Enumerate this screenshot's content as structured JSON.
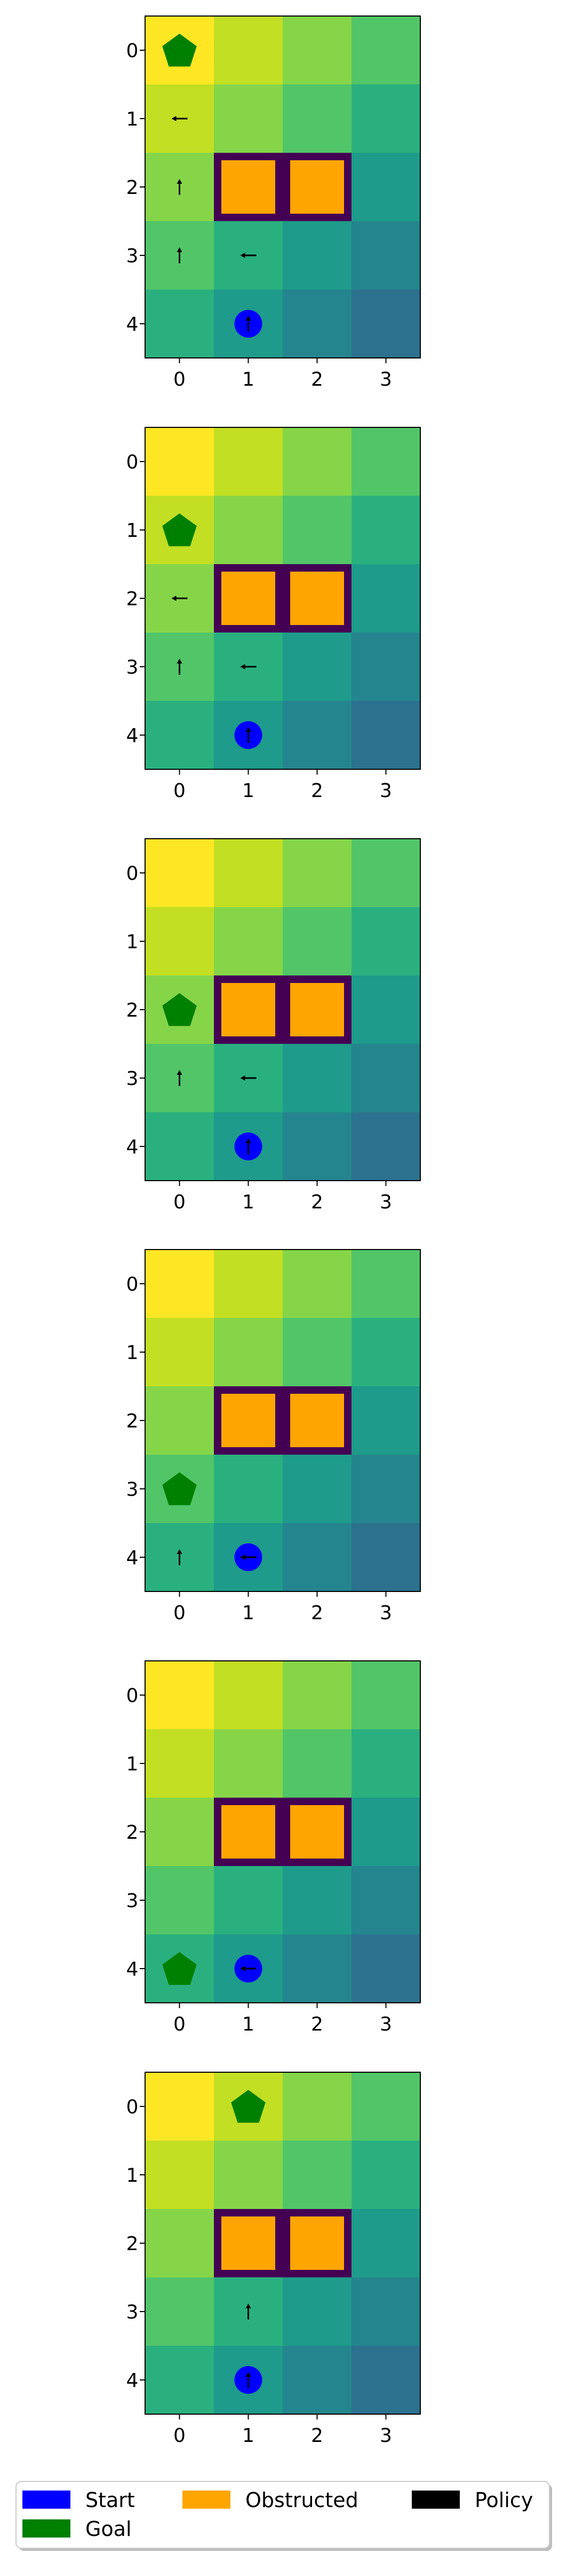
{
  "chart_data": {
    "type": "heatmap",
    "grid": {
      "rows": 5,
      "cols": 4
    },
    "colors": {
      "values": [
        [
          "#fde725",
          "#c2df23",
          "#86d549",
          "#52c569"
        ],
        [
          "#c2df23",
          "#86d549",
          "#52c569",
          "#2ab07f"
        ],
        [
          "#86d549",
          "#52c569",
          "#2ab07f",
          "#1e9b8a"
        ],
        [
          "#52c569",
          "#2ab07f",
          "#1e9b8a",
          "#25858e"
        ],
        [
          "#2ab07f",
          "#1e9b8a",
          "#25858e",
          "#2c728e"
        ]
      ],
      "obstacle_fill": "#ffa500",
      "obstacle_border": "#440154",
      "start": "#0000ff",
      "goal": "#008000",
      "policy": "#000000"
    },
    "x_ticks": [
      "0",
      "1",
      "2",
      "3"
    ],
    "y_ticks": [
      "0",
      "1",
      "2",
      "3",
      "4"
    ],
    "panels": [
      {
        "start": [
          4,
          1
        ],
        "goal": [
          0,
          0
        ],
        "obstacles": [
          [
            2,
            1
          ],
          [
            2,
            2
          ]
        ],
        "policy": [
          {
            "row": 1,
            "col": 0,
            "dir": "left"
          },
          {
            "row": 2,
            "col": 0,
            "dir": "up"
          },
          {
            "row": 3,
            "col": 0,
            "dir": "up"
          },
          {
            "row": 3,
            "col": 1,
            "dir": "left"
          },
          {
            "row": 4,
            "col": 1,
            "dir": "up"
          }
        ]
      },
      {
        "start": [
          4,
          1
        ],
        "goal": [
          1,
          0
        ],
        "obstacles": [
          [
            2,
            1
          ],
          [
            2,
            2
          ]
        ],
        "policy": [
          {
            "row": 2,
            "col": 0,
            "dir": "left"
          },
          {
            "row": 3,
            "col": 0,
            "dir": "up"
          },
          {
            "row": 3,
            "col": 1,
            "dir": "left"
          },
          {
            "row": 4,
            "col": 1,
            "dir": "up"
          }
        ]
      },
      {
        "start": [
          4,
          1
        ],
        "goal": [
          2,
          0
        ],
        "obstacles": [
          [
            2,
            1
          ],
          [
            2,
            2
          ]
        ],
        "policy": [
          {
            "row": 3,
            "col": 0,
            "dir": "up"
          },
          {
            "row": 3,
            "col": 1,
            "dir": "left"
          },
          {
            "row": 4,
            "col": 1,
            "dir": "up"
          }
        ]
      },
      {
        "start": [
          4,
          1
        ],
        "goal": [
          3,
          0
        ],
        "obstacles": [
          [
            2,
            1
          ],
          [
            2,
            2
          ]
        ],
        "policy": [
          {
            "row": 4,
            "col": 0,
            "dir": "up"
          },
          {
            "row": 4,
            "col": 1,
            "dir": "left"
          }
        ]
      },
      {
        "start": [
          4,
          1
        ],
        "goal": [
          4,
          0
        ],
        "obstacles": [
          [
            2,
            1
          ],
          [
            2,
            2
          ]
        ],
        "policy": [
          {
            "row": 4,
            "col": 1,
            "dir": "left"
          }
        ]
      },
      {
        "start": [
          4,
          1
        ],
        "goal": [
          0,
          1
        ],
        "obstacles": [
          [
            2,
            1
          ],
          [
            2,
            2
          ]
        ],
        "policy": [
          {
            "row": 3,
            "col": 1,
            "dir": "up"
          },
          {
            "row": 4,
            "col": 1,
            "dir": "up"
          }
        ]
      }
    ],
    "legend": {
      "position": "bottom",
      "entries": [
        {
          "label": "Start",
          "color": "#0000ff"
        },
        {
          "label": "Goal",
          "color": "#008000"
        },
        {
          "label": "Obstructed",
          "color": "#ffa500"
        },
        {
          "label": "Policy",
          "color": "#000000"
        }
      ]
    }
  }
}
